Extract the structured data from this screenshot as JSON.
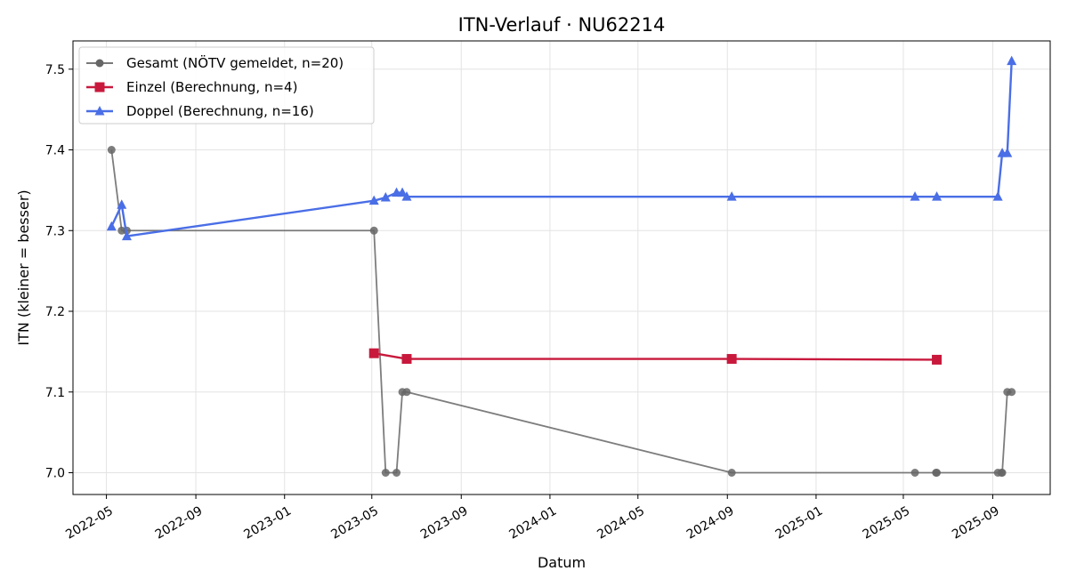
{
  "chart_data": {
    "type": "line",
    "title": "ITN-Verlauf · NU62214",
    "xlabel": "Datum",
    "ylabel": "ITN  (kleiner = besser)",
    "x_type": "date",
    "xlim": [
      "2022-03-16",
      "2025-11-19"
    ],
    "ylim": [
      6.973,
      7.535
    ],
    "x_ticks": [
      "2022-05",
      "2022-09",
      "2023-01",
      "2023-05",
      "2023-09",
      "2024-01",
      "2024-05",
      "2024-09",
      "2025-01",
      "2025-05",
      "2025-09"
    ],
    "y_ticks": [
      7.0,
      7.1,
      7.2,
      7.3,
      7.4,
      7.5
    ],
    "grid": true,
    "legend_position": "top-left",
    "series": [
      {
        "name": "Gesamt (NÖTV gemeldet, n=20)",
        "color": "#666666",
        "marker": "circle",
        "points": [
          {
            "x": "2022-05-08",
            "y": 7.4
          },
          {
            "x": "2022-05-22",
            "y": 7.3
          },
          {
            "x": "2022-05-29",
            "y": 7.3
          },
          {
            "x": "2023-05-04",
            "y": 7.3
          },
          {
            "x": "2023-05-20",
            "y": 7.0
          },
          {
            "x": "2023-06-04",
            "y": 7.0
          },
          {
            "x": "2023-06-12",
            "y": 7.1
          },
          {
            "x": "2023-06-18",
            "y": 7.1
          },
          {
            "x": "2024-09-07",
            "y": 7.0
          },
          {
            "x": "2025-05-17",
            "y": 7.0
          },
          {
            "x": "2025-06-15",
            "y": 7.0
          },
          {
            "x": "2025-06-16",
            "y": 7.0
          },
          {
            "x": "2025-09-08",
            "y": 7.0
          },
          {
            "x": "2025-09-13",
            "y": 7.0
          },
          {
            "x": "2025-09-14",
            "y": 7.0
          },
          {
            "x": "2025-09-21",
            "y": 7.1
          },
          {
            "x": "2025-09-27",
            "y": 7.1
          }
        ]
      },
      {
        "name": "Einzel (Berechnung, n=4)",
        "color": "#c8193c",
        "marker": "square",
        "points": [
          {
            "x": "2023-05-04",
            "y": 7.148
          },
          {
            "x": "2023-06-18",
            "y": 7.141
          },
          {
            "x": "2024-09-07",
            "y": 7.141
          },
          {
            "x": "2025-06-16",
            "y": 7.14
          }
        ]
      },
      {
        "name": "Doppel (Berechnung, n=16)",
        "color": "#4a6ee6",
        "marker": "triangle",
        "points": [
          {
            "x": "2022-05-08",
            "y": 7.305
          },
          {
            "x": "2022-05-22",
            "y": 7.332
          },
          {
            "x": "2022-05-29",
            "y": 7.293
          },
          {
            "x": "2023-05-04",
            "y": 7.337
          },
          {
            "x": "2023-05-20",
            "y": 7.341
          },
          {
            "x": "2023-06-04",
            "y": 7.347
          },
          {
            "x": "2023-06-12",
            "y": 7.347
          },
          {
            "x": "2023-06-18",
            "y": 7.342
          },
          {
            "x": "2024-09-07",
            "y": 7.342
          },
          {
            "x": "2025-05-17",
            "y": 7.342
          },
          {
            "x": "2025-06-16",
            "y": 7.342
          },
          {
            "x": "2025-09-08",
            "y": 7.342
          },
          {
            "x": "2025-09-14",
            "y": 7.396
          },
          {
            "x": "2025-09-21",
            "y": 7.396
          },
          {
            "x": "2025-09-27",
            "y": 7.51
          }
        ]
      }
    ]
  }
}
